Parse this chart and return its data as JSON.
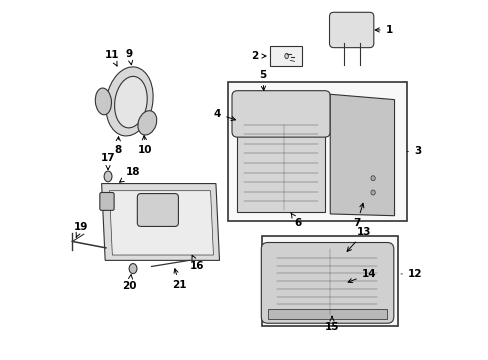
{
  "bg_color": "#ffffff",
  "line_color": "#333333",
  "text_color": "#000000",
  "fig_width": 4.89,
  "fig_height": 3.6,
  "dpi": 100
}
